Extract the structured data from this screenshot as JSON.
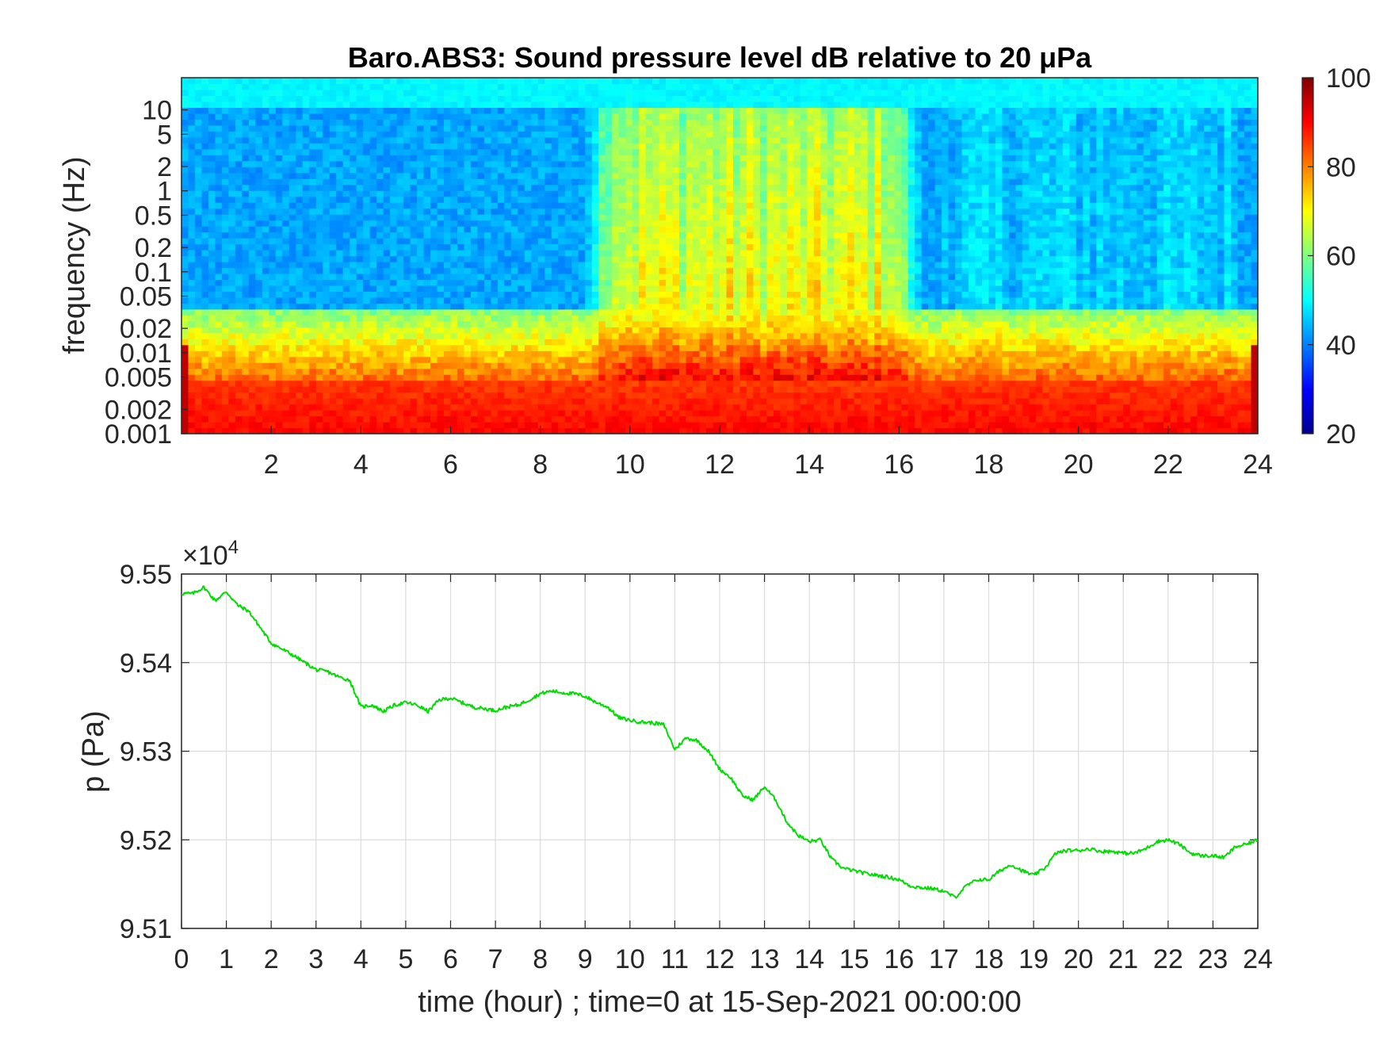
{
  "chart_data": [
    {
      "type": "heatmap",
      "title": "Baro.ABS3: Sound pressure level dB relative to 20 μPa",
      "ylabel": "frequency (Hz)",
      "xlabel": "",
      "x_tick_labels": [
        "2",
        "4",
        "6",
        "8",
        "10",
        "12",
        "14",
        "16",
        "18",
        "20",
        "22",
        "24"
      ],
      "x_ticks": [
        2,
        4,
        6,
        8,
        10,
        12,
        14,
        16,
        18,
        20,
        22,
        24
      ],
      "xlim": [
        0,
        24
      ],
      "y_scale": "log",
      "y_tick_labels": [
        "10",
        "5",
        "2",
        "1",
        "0.5",
        "0.2",
        "0.1",
        "0.05",
        "0.02",
        "0.01",
        "0.005",
        "0.002",
        "0.001"
      ],
      "y_ticks": [
        10,
        5,
        2,
        1,
        0.5,
        0.2,
        0.1,
        0.05,
        0.02,
        0.01,
        0.005,
        0.002,
        0.001
      ],
      "ylim": [
        0.001,
        25
      ],
      "colormap": "jet",
      "colorbar": {
        "range": [
          20,
          100
        ],
        "tick_labels": [
          "100",
          "80",
          "60",
          "40",
          "20"
        ],
        "ticks": [
          100,
          80,
          60,
          40,
          20
        ]
      },
      "description_hidden": true,
      "quiet_periods_hours": [
        [
          0,
          9
        ],
        [
          16.5,
          24
        ]
      ],
      "active_period_hours": [
        9,
        16.5
      ],
      "low_freq_level_db": 88,
      "high_freq_level_db": 48
    },
    {
      "type": "line",
      "title": "",
      "xlabel": "time (hour) ; time=0 at 15-Sep-2021 00:00:00",
      "ylabel": "p (Pa)",
      "exponent_label": "×10",
      "exponent_power": "4",
      "x_tick_labels": [
        "0",
        "1",
        "2",
        "3",
        "4",
        "5",
        "6",
        "7",
        "8",
        "9",
        "10",
        "11",
        "12",
        "13",
        "14",
        "15",
        "16",
        "17",
        "18",
        "19",
        "20",
        "21",
        "22",
        "23",
        "24"
      ],
      "xlim": [
        0,
        24
      ],
      "y_tick_labels": [
        "9.55",
        "9.54",
        "9.53",
        "9.52",
        "9.51"
      ],
      "y_ticks": [
        95500,
        95400,
        95300,
        95200,
        95100
      ],
      "ylim": [
        95100,
        95500
      ],
      "grid": true,
      "line_color": "#00dd00",
      "series": [
        {
          "x": [
            0,
            0.25,
            0.5,
            0.75,
            1.0,
            1.25,
            1.5,
            1.75,
            2.0,
            2.25,
            2.5,
            2.75,
            3.0,
            3.25,
            3.5,
            3.75,
            4.0,
            4.25,
            4.5,
            4.75,
            5.0,
            5.25,
            5.5,
            5.75,
            6.0,
            6.25,
            6.5,
            6.75,
            7.0,
            7.25,
            7.5,
            7.75,
            8.0,
            8.25,
            8.5,
            8.75,
            9.0,
            9.25,
            9.5,
            9.75,
            10.0,
            10.25,
            10.5,
            10.75,
            11.0,
            11.25,
            11.5,
            11.75,
            12.0,
            12.25,
            12.5,
            12.75,
            13.0,
            13.25,
            13.5,
            13.75,
            14.0,
            14.25,
            14.5,
            14.75,
            15.0,
            15.25,
            15.5,
            15.75,
            16.0,
            16.25,
            16.5,
            16.75,
            17.0,
            17.25,
            17.5,
            17.75,
            18.0,
            18.25,
            18.5,
            18.75,
            19.0,
            19.25,
            19.5,
            19.75,
            20.0,
            20.25,
            20.5,
            20.75,
            21.0,
            21.25,
            21.5,
            21.75,
            22.0,
            22.25,
            22.5,
            22.75,
            23.0,
            23.25,
            23.5,
            23.75,
            24.0
          ],
          "y": [
            95478,
            95478,
            95485,
            95470,
            95480,
            95465,
            95458,
            95440,
            95422,
            95415,
            95408,
            95400,
            95392,
            95390,
            95384,
            95380,
            95350,
            95352,
            95345,
            95352,
            95355,
            95352,
            95345,
            95358,
            95360,
            95355,
            95350,
            95348,
            95346,
            95350,
            95352,
            95358,
            95365,
            95368,
            95366,
            95365,
            95362,
            95355,
            95350,
            95338,
            95335,
            95333,
            95332,
            95330,
            95302,
            95315,
            95312,
            95300,
            95280,
            95270,
            95250,
            95245,
            95260,
            95245,
            95220,
            95205,
            95198,
            95200,
            95178,
            95168,
            95165,
            95162,
            95160,
            95158,
            95155,
            95148,
            95146,
            95145,
            95142,
            95135,
            95148,
            95155,
            95155,
            95165,
            95172,
            95165,
            95160,
            95168,
            95185,
            95188,
            95188,
            95190,
            95187,
            95187,
            95185,
            95185,
            95190,
            95198,
            95200,
            95195,
            95185,
            95182,
            95182,
            95180,
            95192,
            95195,
            95200
          ]
        }
      ]
    }
  ]
}
